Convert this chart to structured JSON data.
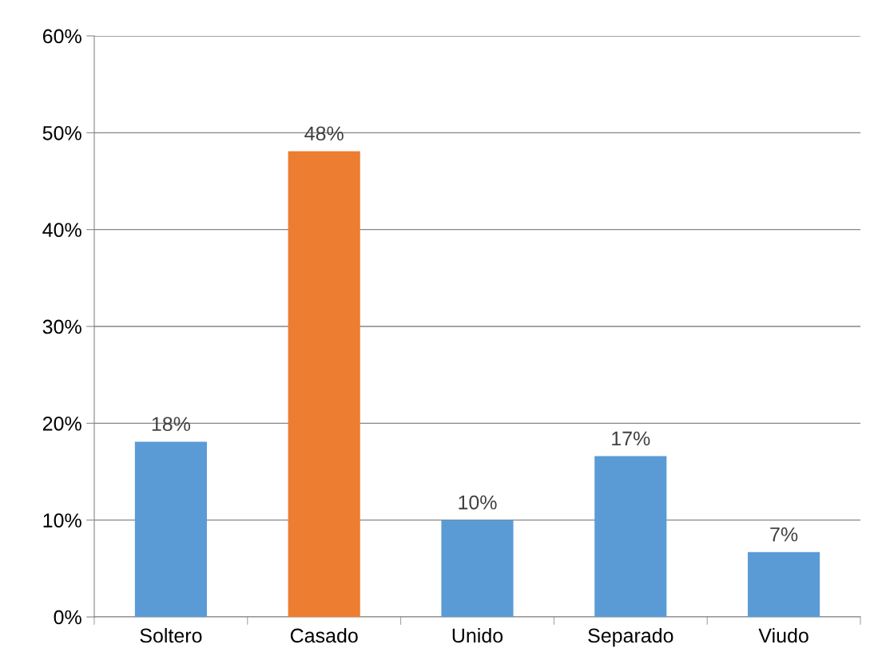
{
  "chart_data": {
    "type": "bar",
    "categories": [
      "Soltero",
      "Casado",
      "Unido",
      "Separado",
      "Viudo"
    ],
    "values": [
      18.1,
      48.1,
      10,
      16.6,
      6.7
    ],
    "value_labels": [
      "18%",
      "48%",
      "10%",
      "17%",
      "7%"
    ],
    "colors": [
      "#5b9bd5",
      "#ed7d31",
      "#5b9bd5",
      "#5b9bd5",
      "#5b9bd5"
    ],
    "ylim": [
      0,
      60
    ],
    "yticks": [
      {
        "value": 0,
        "label": "0%"
      },
      {
        "value": 10,
        "label": "10%"
      },
      {
        "value": 20,
        "label": "20%"
      },
      {
        "value": 30,
        "label": "30%"
      },
      {
        "value": 40,
        "label": "40%"
      },
      {
        "value": 50,
        "label": "50%"
      },
      {
        "value": 60,
        "label": "60%"
      }
    ],
    "grid": "y",
    "legend": false
  }
}
